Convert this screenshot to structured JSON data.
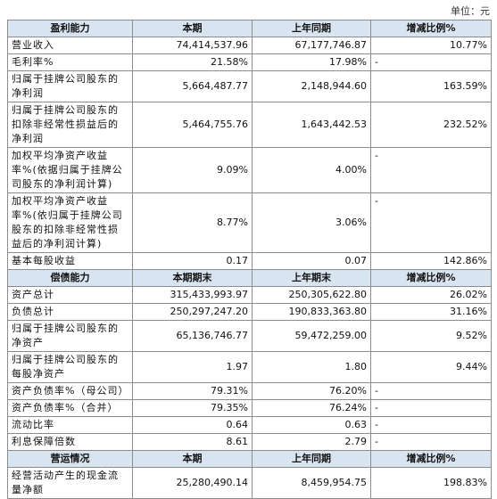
{
  "unit": "单位：元",
  "sections": [
    {
      "header": [
        "盈利能力",
        "本期",
        "上年同期",
        "增减比例%"
      ],
      "rows": [
        [
          "营业收入",
          "74,414,537.96",
          "67,177,746.87",
          "10.77%"
        ],
        [
          "毛利率%",
          "21.58%",
          "17.98%",
          "-"
        ],
        [
          "归属于挂牌公司股东的净利润",
          "5,664,487.77",
          "2,148,944.60",
          "163.59%"
        ],
        [
          "归属于挂牌公司股东的扣除非经常性损益后的净利润",
          "5,464,755.76",
          "1,643,442.53",
          "232.52%"
        ],
        [
          "加权平均净资产收益率%(依据归属于挂牌公司股东的净利润计算)",
          "9.09%",
          "4.00%",
          "-"
        ],
        [
          "加权平均净资产收益率%(依归属于挂牌公司股东的扣除非经常性损益后的净利润计算)",
          "8.77%",
          "3.06%",
          "-"
        ],
        [
          "基本每股收益",
          "0.17",
          "0.07",
          "142.86%"
        ]
      ]
    },
    {
      "header": [
        "偿债能力",
        "本期期末",
        "上年期末",
        "增减比例%"
      ],
      "rows": [
        [
          "资产总计",
          "315,433,993.97",
          "250,305,622.80",
          "26.02%"
        ],
        [
          "负债总计",
          "250,297,247.20",
          "190,833,363.80",
          "31.16%"
        ],
        [
          "归属于挂牌公司股东的净资产",
          "65,136,746.77",
          "59,472,259.00",
          "9.52%"
        ],
        [
          "归属于挂牌公司股东的每股净资产",
          "1.97",
          "1.80",
          "9.44%"
        ],
        [
          "资产负债率%（母公司）",
          "79.31%",
          "76.20%",
          "-"
        ],
        [
          "资产负债率%（合并）",
          "79.35%",
          "76.24%",
          "-"
        ],
        [
          "流动比率",
          "0.64",
          "0.63",
          "-"
        ],
        [
          "利息保障倍数",
          "8.61",
          "2.79",
          "-"
        ]
      ]
    },
    {
      "header": [
        "营运情况",
        "本期",
        "上年同期",
        "增减比例%"
      ],
      "rows": [
        [
          "经营活动产生的现金流量净额",
          "25,280,490.14",
          "8,459,954.75",
          "198.83%"
        ]
      ]
    }
  ]
}
